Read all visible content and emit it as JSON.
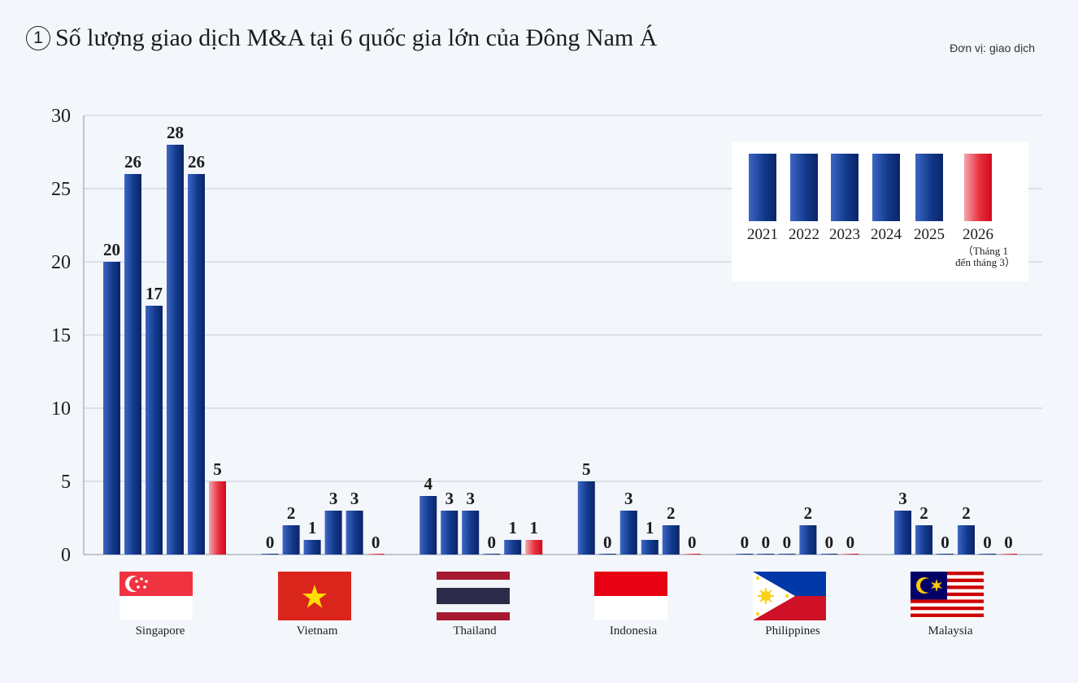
{
  "title": {
    "number": "1",
    "text": "Số lượng giao dịch M&A tại 6 quốc gia lớn của Đông Nam Á"
  },
  "unit_label": "Đơn vị: giao dịch",
  "legend": {
    "note": "（Tháng 1\nđến tháng 3）"
  },
  "colors": {
    "bar_navy": "#123a8c",
    "bar_red": "#e7313f",
    "grid": "#c6ccd6"
  },
  "chart_data": {
    "type": "bar",
    "categories": [
      "Singapore",
      "Vietnam",
      "Thailand",
      "Indonesia",
      "Philippines",
      "Malaysia"
    ],
    "y_ticks": [
      0,
      5,
      10,
      15,
      20,
      25,
      30
    ],
    "ylim": [
      0,
      30
    ],
    "grid": true,
    "legend_position": "top-right",
    "series": [
      {
        "name": "2021",
        "values": [
          20,
          0,
          4,
          5,
          0,
          3
        ]
      },
      {
        "name": "2022",
        "values": [
          26,
          2,
          3,
          0,
          0,
          2
        ]
      },
      {
        "name": "2023",
        "values": [
          17,
          1,
          3,
          3,
          0,
          0
        ]
      },
      {
        "name": "2024",
        "values": [
          28,
          3,
          0,
          1,
          2,
          2
        ]
      },
      {
        "name": "2025",
        "values": [
          26,
          3,
          1,
          2,
          0,
          0
        ]
      },
      {
        "name": "2026",
        "values": [
          5,
          0,
          1,
          0,
          0,
          0
        ]
      }
    ]
  }
}
